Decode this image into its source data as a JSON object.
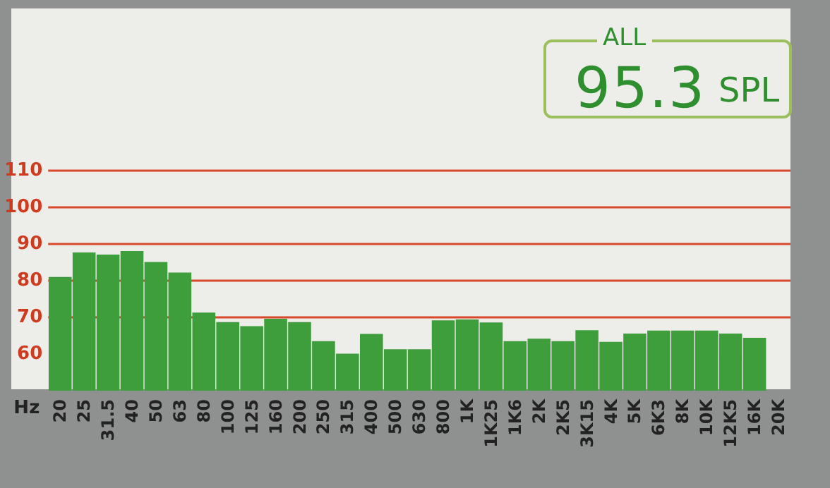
{
  "chart_data": {
    "type": "bar",
    "xlabel": "Hz",
    "annotations": [
      "ALL",
      "95.3",
      "SPL"
    ],
    "categories": [
      "20",
      "25",
      "31.5",
      "40",
      "50",
      "63",
      "80",
      "100",
      "125",
      "160",
      "200",
      "250",
      "315",
      "400",
      "500",
      "630",
      "800",
      "1K",
      "1K25",
      "1K6",
      "2K",
      "2K5",
      "3K15",
      "4K",
      "5K",
      "6K3",
      "8K",
      "10K",
      "12K5",
      "16K",
      "20K"
    ],
    "values": [
      81,
      87.7,
      87.1,
      88.1,
      85.1,
      82.2,
      71.3,
      68.7,
      67.6,
      69.6,
      68.7,
      63.5,
      60.1,
      65.5,
      61.3,
      61.3,
      69.2,
      69.4,
      68.6,
      63.5,
      64.2,
      63.5,
      66.5,
      63.3,
      65.6,
      66.4,
      66.4,
      66.4,
      65.6,
      64.4,
      null
    ],
    "color": "#3f9e3c",
    "ylim": [
      50,
      110
    ],
    "yticks": [
      60,
      70,
      80,
      90,
      100,
      110
    ],
    "grid": "y"
  }
}
